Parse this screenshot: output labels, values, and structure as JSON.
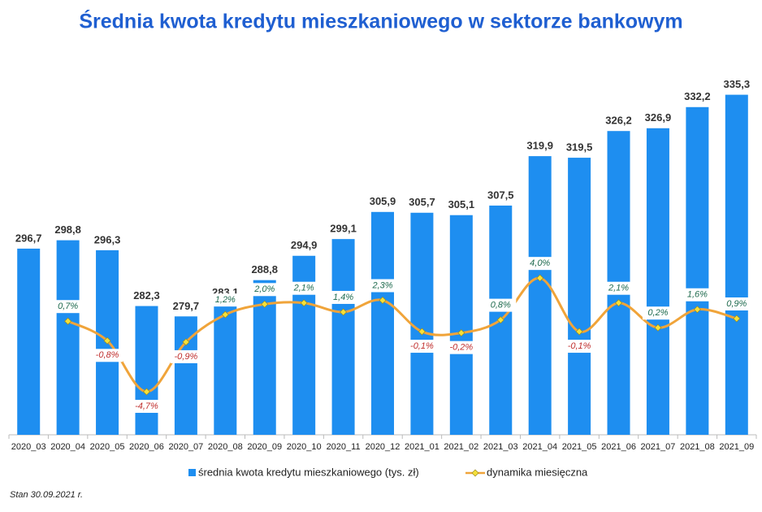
{
  "chart_data": {
    "type": "bar",
    "title": "Średnia kwota kredytu mieszkaniowego w sektorze bankowym",
    "categories": [
      "2020_03",
      "2020_04",
      "2020_05",
      "2020_06",
      "2020_07",
      "2020_08",
      "2020_09",
      "2020_10",
      "2020_11",
      "2020_12",
      "2021_01",
      "2021_02",
      "2021_03",
      "2021_04",
      "2021_05",
      "2021_06",
      "2021_07",
      "2021_08",
      "2021_09"
    ],
    "series": [
      {
        "name": "średnia kwota kredytu mieszkaniowego (tys. zł)",
        "color": "#1e8ef0",
        "values": [
          296.7,
          298.8,
          296.3,
          282.3,
          279.7,
          283.1,
          288.8,
          294.9,
          299.1,
          305.9,
          305.7,
          305.1,
          307.5,
          319.9,
          319.5,
          326.2,
          326.9,
          332.2,
          335.3
        ],
        "value_labels": [
          "296,7",
          "298,8",
          "296,3",
          "282,3",
          "279,7",
          "283,1",
          "288,8",
          "294,9",
          "299,1",
          "305,9",
          "305,7",
          "305,1",
          "307,5",
          "319,9",
          "319,5",
          "326,2",
          "326,9",
          "332,2",
          "335,3"
        ]
      },
      {
        "name": "dynamika miesięczna",
        "color": "#f0a43a",
        "type": "line",
        "axis": "y2",
        "values": [
          null,
          0.7,
          -0.8,
          -4.7,
          -0.9,
          1.2,
          2.0,
          2.1,
          1.4,
          2.3,
          -0.1,
          -0.2,
          0.8,
          4.0,
          -0.1,
          2.1,
          0.2,
          1.6,
          0.9
        ],
        "value_labels": [
          null,
          "0,7%",
          "-0,8%",
          "-4,7%",
          "-0,9%",
          "1,2%",
          "2,0%",
          "2,1%",
          "1,4%",
          "2,3%",
          "-0,1%",
          "-0,2%",
          "0,8%",
          "4,0%",
          "-0,1%",
          "2,1%",
          "0,2%",
          "1,6%",
          "0,9%"
        ]
      }
    ],
    "ylim": [
      250,
      345
    ],
    "y2lim": [
      -8,
      21
    ],
    "note": "Stan 30.09.2021 r."
  }
}
